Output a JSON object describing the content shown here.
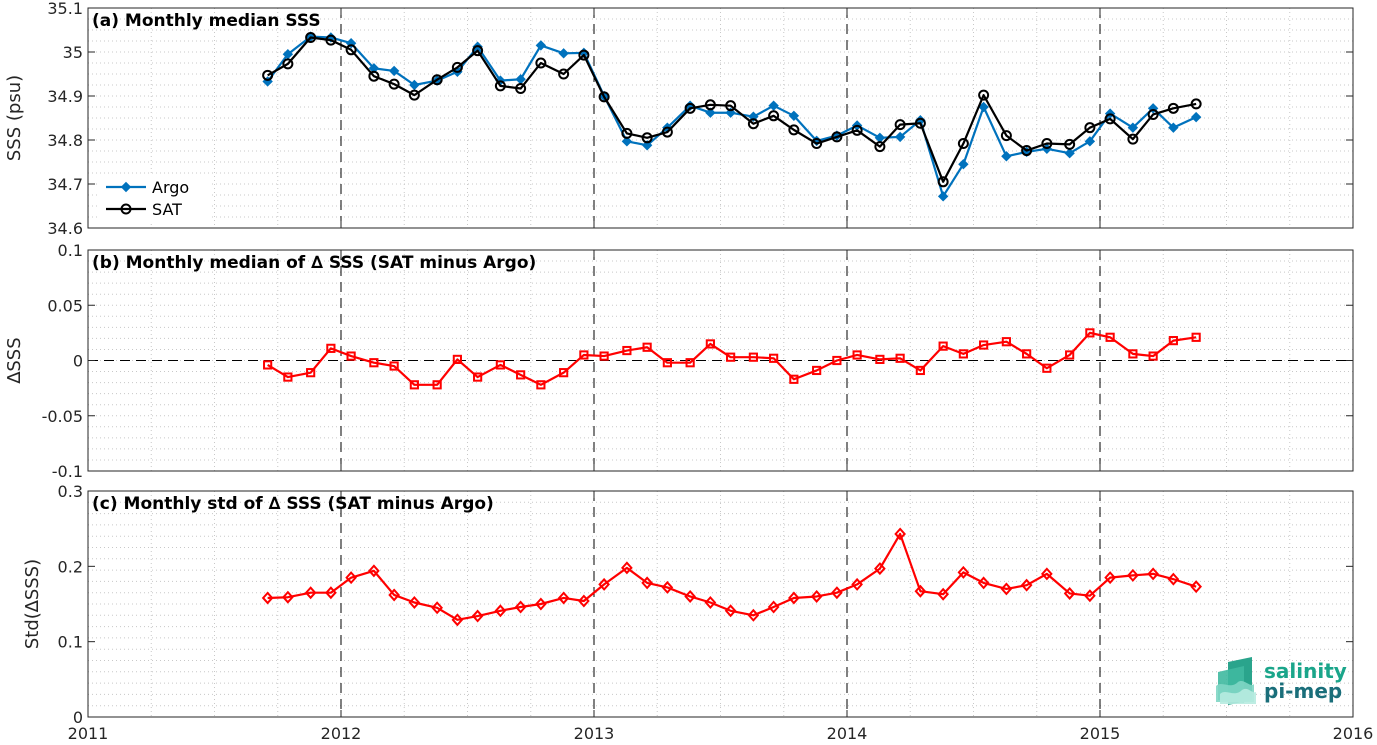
{
  "chart_data": [
    {
      "type": "line",
      "title": "(a) Monthly median SSS",
      "ylabel": "SSS (psu)",
      "xlim": [
        2011,
        2016
      ],
      "ylim": [
        34.6,
        35.1
      ],
      "yticks": [
        "34.6",
        "34.7",
        "34.8",
        "34.9",
        "35",
        "35.1"
      ],
      "xticks": [
        "2011",
        "2012",
        "2013",
        "2014",
        "2015",
        "2016"
      ],
      "grid": "dotted",
      "legend": "lower-left",
      "x": [
        2011.71,
        2011.79,
        2011.88,
        2011.96,
        2012.04,
        2012.13,
        2012.21,
        2012.29,
        2012.38,
        2012.46,
        2012.54,
        2012.63,
        2012.71,
        2012.79,
        2012.88,
        2012.96,
        2013.04,
        2013.13,
        2013.21,
        2013.29,
        2013.38,
        2013.46,
        2013.54,
        2013.63,
        2013.71,
        2013.79,
        2013.88,
        2013.96,
        2014.04,
        2014.13,
        2014.21,
        2014.29,
        2014.38,
        2014.46,
        2014.54,
        2014.63,
        2014.71,
        2014.79,
        2014.88,
        2014.96,
        2015.04,
        2015.13,
        2015.21,
        2015.29,
        2015.38
      ],
      "series": [
        {
          "name": "Argo",
          "color": "#0072BD",
          "marker": "diamond-filled",
          "values": [
            34.933,
            34.995,
            35.035,
            35.033,
            35.02,
            34.963,
            34.957,
            34.925,
            34.935,
            34.955,
            35.012,
            34.935,
            34.938,
            35.015,
            34.997,
            34.998,
            34.9,
            34.797,
            34.788,
            34.828,
            34.878,
            34.862,
            34.862,
            34.853,
            34.878,
            34.855,
            34.798,
            34.81,
            34.833,
            34.805,
            34.807,
            34.845,
            34.672,
            34.745,
            34.875,
            34.763,
            34.773,
            34.78,
            34.77,
            34.797,
            34.86,
            34.828,
            34.872,
            34.828,
            34.852
          ]
        },
        {
          "name": "SAT",
          "color": "#000000",
          "marker": "circle-open",
          "values": [
            34.947,
            34.973,
            35.033,
            35.027,
            35.005,
            34.945,
            34.927,
            34.902,
            34.937,
            34.965,
            35.003,
            34.923,
            34.917,
            34.975,
            34.95,
            34.993,
            34.898,
            34.815,
            34.805,
            34.818,
            34.872,
            34.88,
            34.878,
            34.837,
            34.855,
            34.823,
            34.792,
            34.807,
            34.822,
            34.785,
            34.835,
            34.838,
            34.705,
            34.792,
            34.902,
            34.81,
            34.776,
            34.792,
            34.79,
            34.828,
            34.848,
            34.802,
            34.858,
            34.872,
            34.882
          ]
        }
      ]
    },
    {
      "type": "line",
      "title": "(b) Monthly median of ∆ SSS (SAT minus Argo)",
      "ylabel": "∆SSS",
      "xlim": [
        2011,
        2016
      ],
      "ylim": [
        -0.1,
        0.1
      ],
      "yticks": [
        "-0.1",
        "-0.05",
        "0",
        "0.05",
        "0.1"
      ],
      "xticks": [
        "2011",
        "2012",
        "2013",
        "2014",
        "2015",
        "2016"
      ],
      "grid": "dotted",
      "x": [
        2011.71,
        2011.79,
        2011.88,
        2011.96,
        2012.04,
        2012.13,
        2012.21,
        2012.29,
        2012.38,
        2012.46,
        2012.54,
        2012.63,
        2012.71,
        2012.79,
        2012.88,
        2012.96,
        2013.04,
        2013.13,
        2013.21,
        2013.29,
        2013.38,
        2013.46,
        2013.54,
        2013.63,
        2013.71,
        2013.79,
        2013.88,
        2013.96,
        2014.04,
        2014.13,
        2014.21,
        2014.29,
        2014.38,
        2014.46,
        2014.54,
        2014.63,
        2014.71,
        2014.79,
        2014.88,
        2014.96,
        2015.04,
        2015.13,
        2015.21,
        2015.29,
        2015.38
      ],
      "series": [
        {
          "color": "#FF0000",
          "marker": "square-open",
          "values": [
            -0.004,
            -0.015,
            -0.011,
            0.011,
            0.004,
            -0.002,
            -0.005,
            -0.022,
            -0.022,
            0.001,
            -0.015,
            -0.004,
            -0.013,
            -0.022,
            -0.011,
            0.005,
            0.004,
            0.009,
            0.012,
            -0.002,
            -0.002,
            0.015,
            0.003,
            0.003,
            0.002,
            -0.017,
            -0.009,
            0.0,
            0.005,
            0.001,
            0.002,
            -0.009,
            0.013,
            0.006,
            0.014,
            0.017,
            0.006,
            -0.007,
            0.005,
            0.025,
            0.021,
            0.006,
            0.004,
            0.018,
            0.021
          ]
        }
      ]
    },
    {
      "type": "line",
      "title": "(c) Monthly std of ∆ SSS (SAT minus Argo)",
      "ylabel": "Std(∆SSS)",
      "xlim": [
        2011,
        2016
      ],
      "ylim": [
        0,
        0.3
      ],
      "yticks": [
        "0",
        "0.1",
        "0.2",
        "0.3"
      ],
      "xticks": [
        "2011",
        "2012",
        "2013",
        "2014",
        "2015",
        "2016"
      ],
      "grid": "dotted",
      "x": [
        2011.71,
        2011.79,
        2011.88,
        2011.96,
        2012.04,
        2012.13,
        2012.21,
        2012.29,
        2012.38,
        2012.46,
        2012.54,
        2012.63,
        2012.71,
        2012.79,
        2012.88,
        2012.96,
        2013.04,
        2013.13,
        2013.21,
        2013.29,
        2013.38,
        2013.46,
        2013.54,
        2013.63,
        2013.71,
        2013.79,
        2013.88,
        2013.96,
        2014.04,
        2014.13,
        2014.21,
        2014.29,
        2014.38,
        2014.46,
        2014.54,
        2014.63,
        2014.71,
        2014.79,
        2014.88,
        2014.96,
        2015.04,
        2015.13,
        2015.21,
        2015.29,
        2015.38
      ],
      "series": [
        {
          "color": "#FF0000",
          "marker": "diamond-open",
          "values": [
            0.158,
            0.159,
            0.165,
            0.165,
            0.185,
            0.194,
            0.162,
            0.152,
            0.145,
            0.129,
            0.134,
            0.141,
            0.146,
            0.15,
            0.158,
            0.154,
            0.176,
            0.198,
            0.178,
            0.172,
            0.16,
            0.152,
            0.141,
            0.135,
            0.146,
            0.158,
            0.16,
            0.165,
            0.176,
            0.197,
            0.243,
            0.167,
            0.163,
            0.192,
            0.178,
            0.17,
            0.175,
            0.19,
            0.164,
            0.161,
            0.185,
            0.188,
            0.19,
            0.183,
            0.173
          ]
        }
      ]
    }
  ],
  "logo": {
    "line1": "salinity",
    "line2": "pi-mep",
    "color1": "#1aa58a",
    "color2": "#1a6e7a"
  }
}
